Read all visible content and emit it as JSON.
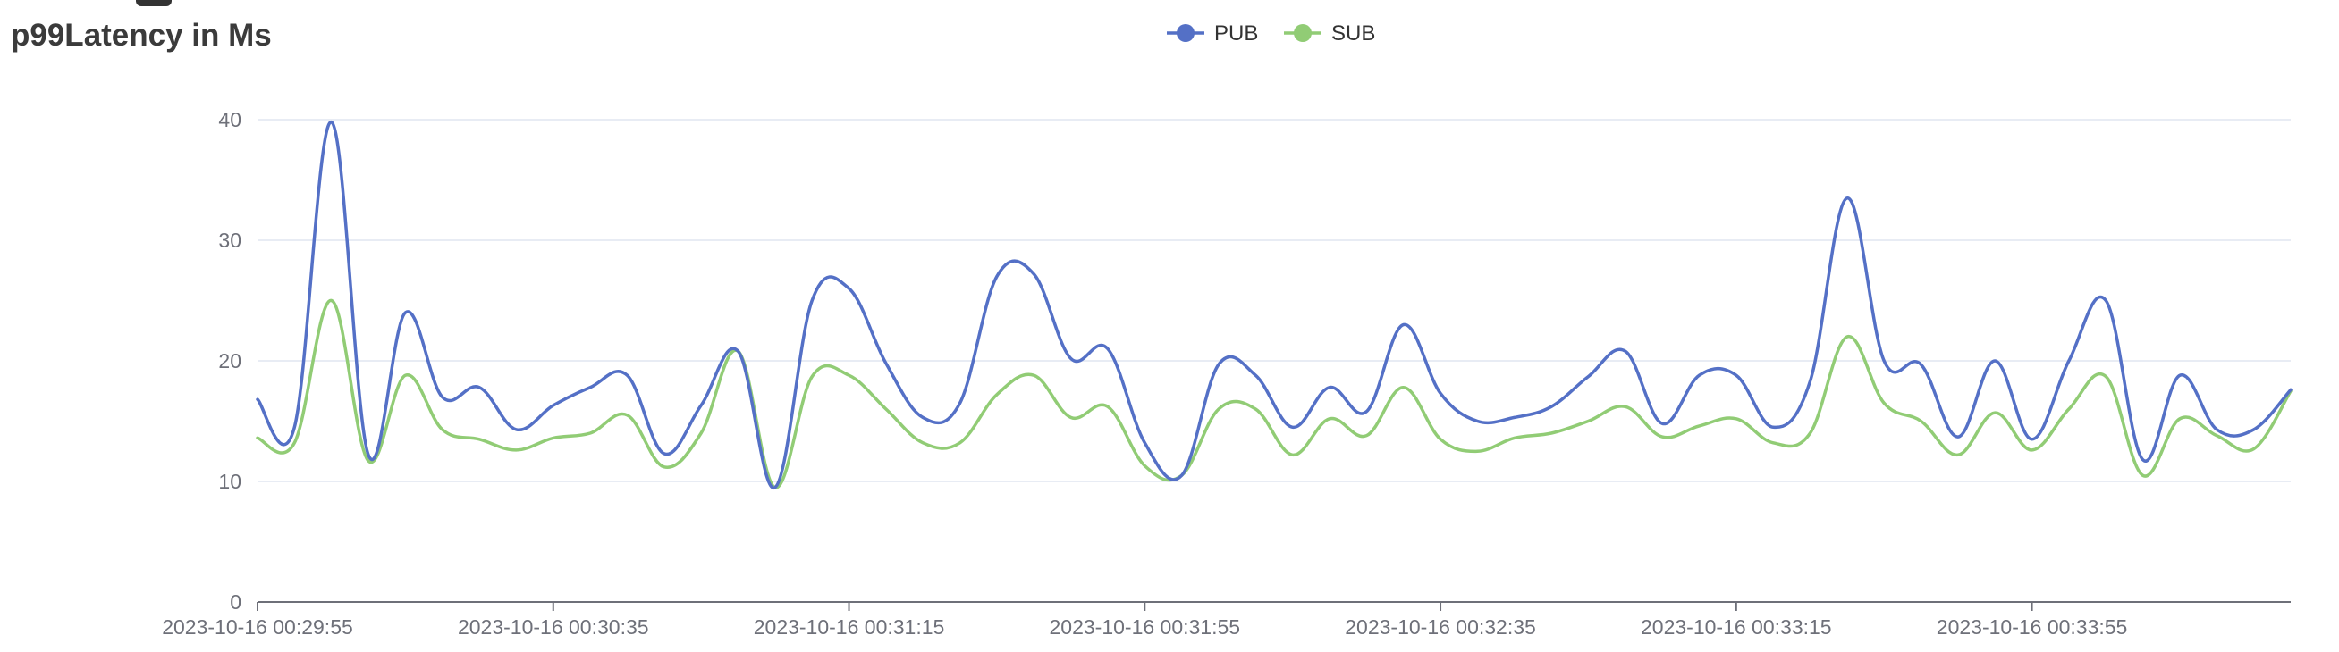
{
  "chart_data": {
    "type": "line",
    "title": "p99Latency in Ms",
    "xlabel": "",
    "ylabel": "",
    "ylim": [
      0,
      40
    ],
    "yticks": [
      0,
      10,
      20,
      30,
      40
    ],
    "x_tick_labels": [
      "2023-10-16 00:29:55",
      "2023-10-16 00:30:35",
      "2023-10-16 00:31:15",
      "2023-10-16 00:31:55",
      "2023-10-16 00:32:35",
      "2023-10-16 00:33:15",
      "2023-10-16 00:33:55"
    ],
    "x_tick_step": 8,
    "point_count": 56,
    "smooth": true,
    "grid": true,
    "legend_position": "top-center",
    "series": [
      {
        "name": "PUB",
        "color": "#5470c6",
        "values": [
          16.8,
          14.5,
          39.8,
          12.2,
          24.0,
          17.0,
          17.8,
          14.3,
          16.3,
          17.8,
          18.8,
          12.3,
          16.3,
          20.8,
          9.5,
          25.0,
          26.0,
          19.8,
          15.3,
          16.5,
          27.0,
          27.2,
          20.2,
          21.0,
          13.2,
          10.5,
          19.7,
          18.8,
          14.5,
          17.8,
          15.8,
          23.0,
          17.3,
          15.0,
          15.3,
          16.2,
          18.7,
          20.8,
          14.8,
          18.8,
          18.8,
          14.5,
          18.3,
          33.5,
          20.0,
          19.7,
          13.7,
          20.0,
          13.5,
          20.0,
          25.0,
          11.8,
          18.8,
          14.3,
          14.3,
          17.6
        ]
      },
      {
        "name": "SUB",
        "color": "#91cc75",
        "values": [
          13.6,
          13.2,
          25.0,
          11.7,
          18.8,
          14.3,
          13.5,
          12.6,
          13.6,
          14.0,
          15.5,
          11.2,
          14.0,
          20.8,
          9.5,
          18.7,
          18.8,
          16.0,
          13.2,
          13.2,
          17.2,
          18.8,
          15.3,
          16.2,
          11.3,
          10.5,
          16.0,
          16.0,
          12.2,
          15.2,
          13.8,
          17.8,
          13.5,
          12.5,
          13.6,
          14.0,
          15.0,
          16.2,
          13.7,
          14.6,
          15.2,
          13.2,
          14.0,
          22.0,
          16.5,
          15.0,
          12.2,
          15.7,
          12.6,
          16.0,
          18.7,
          10.5,
          15.2,
          13.8,
          12.7,
          17.5
        ]
      }
    ]
  }
}
